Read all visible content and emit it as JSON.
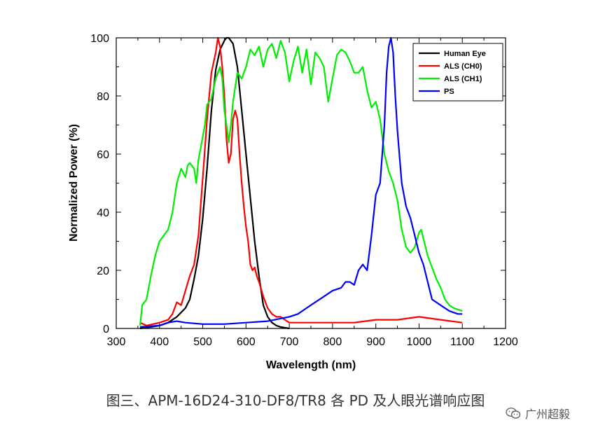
{
  "chart_data": {
    "type": "line",
    "title": "",
    "xlabel": "Wavelength (nm)",
    "ylabel": "Normalized Power (%)",
    "xlim": [
      300,
      1200
    ],
    "ylim": [
      0,
      100
    ],
    "xticks": [
      300,
      400,
      500,
      600,
      700,
      800,
      900,
      1000,
      1100,
      1200
    ],
    "yticks": [
      0,
      20,
      40,
      60,
      80,
      100
    ],
    "grid": false,
    "legend_position": "top-right",
    "series": [
      {
        "name": "Human Eye",
        "color": "#000000",
        "points": [
          [
            355,
            0
          ],
          [
            380,
            0.5
          ],
          [
            400,
            1
          ],
          [
            420,
            2
          ],
          [
            440,
            4
          ],
          [
            460,
            7
          ],
          [
            470,
            10
          ],
          [
            480,
            17
          ],
          [
            490,
            25
          ],
          [
            500,
            38
          ],
          [
            510,
            55
          ],
          [
            520,
            75
          ],
          [
            530,
            89
          ],
          [
            540,
            96
          ],
          [
            550,
            99
          ],
          [
            555,
            100
          ],
          [
            560,
            100
          ],
          [
            570,
            98
          ],
          [
            580,
            90
          ],
          [
            590,
            75
          ],
          [
            600,
            60
          ],
          [
            610,
            45
          ],
          [
            620,
            30
          ],
          [
            630,
            18
          ],
          [
            640,
            8
          ],
          [
            650,
            4
          ],
          [
            660,
            2
          ],
          [
            670,
            1
          ],
          [
            680,
            0.5
          ],
          [
            700,
            0
          ]
        ]
      },
      {
        "name": "ALS (CH0)",
        "color": "#ff0000",
        "points": [
          [
            355,
            2
          ],
          [
            370,
            1
          ],
          [
            400,
            2
          ],
          [
            420,
            3
          ],
          [
            430,
            5
          ],
          [
            440,
            9
          ],
          [
            450,
            8
          ],
          [
            460,
            13
          ],
          [
            470,
            18
          ],
          [
            480,
            22
          ],
          [
            490,
            32
          ],
          [
            500,
            52
          ],
          [
            510,
            72
          ],
          [
            520,
            88
          ],
          [
            530,
            95
          ],
          [
            535,
            100
          ],
          [
            540,
            97
          ],
          [
            545,
            90
          ],
          [
            550,
            80
          ],
          [
            555,
            65
          ],
          [
            560,
            57
          ],
          [
            565,
            60
          ],
          [
            570,
            72
          ],
          [
            575,
            75
          ],
          [
            580,
            72
          ],
          [
            585,
            60
          ],
          [
            590,
            50
          ],
          [
            595,
            42
          ],
          [
            600,
            35
          ],
          [
            605,
            30
          ],
          [
            610,
            22
          ],
          [
            615,
            20
          ],
          [
            620,
            21
          ],
          [
            625,
            18
          ],
          [
            630,
            16
          ],
          [
            640,
            11
          ],
          [
            650,
            7
          ],
          [
            660,
            5
          ],
          [
            670,
            4
          ],
          [
            680,
            4
          ],
          [
            690,
            3
          ],
          [
            700,
            2
          ],
          [
            750,
            2
          ],
          [
            800,
            2
          ],
          [
            850,
            2
          ],
          [
            900,
            3
          ],
          [
            950,
            3
          ],
          [
            1000,
            4
          ],
          [
            1050,
            3
          ],
          [
            1100,
            2
          ]
        ]
      },
      {
        "name": "ALS (CH1)",
        "color": "#00ee00",
        "points": [
          [
            355,
            1
          ],
          [
            360,
            8
          ],
          [
            370,
            10
          ],
          [
            380,
            18
          ],
          [
            390,
            25
          ],
          [
            400,
            30
          ],
          [
            410,
            32
          ],
          [
            420,
            34
          ],
          [
            430,
            40
          ],
          [
            440,
            50
          ],
          [
            450,
            55
          ],
          [
            460,
            52
          ],
          [
            465,
            56
          ],
          [
            470,
            57
          ],
          [
            480,
            55
          ],
          [
            485,
            50
          ],
          [
            490,
            58
          ],
          [
            500,
            66
          ],
          [
            505,
            70
          ],
          [
            510,
            77
          ],
          [
            520,
            79
          ],
          [
            530,
            86
          ],
          [
            540,
            90
          ],
          [
            545,
            86
          ],
          [
            550,
            75
          ],
          [
            555,
            70
          ],
          [
            560,
            64
          ],
          [
            565,
            70
          ],
          [
            570,
            78
          ],
          [
            580,
            88
          ],
          [
            590,
            86
          ],
          [
            600,
            90
          ],
          [
            610,
            96
          ],
          [
            620,
            94
          ],
          [
            630,
            97
          ],
          [
            640,
            90
          ],
          [
            650,
            96
          ],
          [
            660,
            98
          ],
          [
            670,
            93
          ],
          [
            680,
            99
          ],
          [
            685,
            97
          ],
          [
            690,
            95
          ],
          [
            700,
            85
          ],
          [
            710,
            92
          ],
          [
            720,
            97
          ],
          [
            730,
            88
          ],
          [
            740,
            96
          ],
          [
            750,
            84
          ],
          [
            760,
            95
          ],
          [
            770,
            93
          ],
          [
            780,
            90
          ],
          [
            790,
            78
          ],
          [
            800,
            86
          ],
          [
            810,
            94
          ],
          [
            820,
            96
          ],
          [
            830,
            95
          ],
          [
            840,
            92
          ],
          [
            850,
            88
          ],
          [
            860,
            88
          ],
          [
            870,
            90
          ],
          [
            880,
            82
          ],
          [
            890,
            76
          ],
          [
            900,
            78
          ],
          [
            910,
            72
          ],
          [
            920,
            60
          ],
          [
            930,
            54
          ],
          [
            940,
            50
          ],
          [
            950,
            44
          ],
          [
            960,
            34
          ],
          [
            970,
            28
          ],
          [
            980,
            26
          ],
          [
            990,
            28
          ],
          [
            1000,
            33
          ],
          [
            1005,
            34
          ],
          [
            1010,
            31
          ],
          [
            1020,
            25
          ],
          [
            1030,
            21
          ],
          [
            1040,
            17
          ],
          [
            1050,
            14
          ],
          [
            1060,
            10
          ],
          [
            1070,
            8
          ],
          [
            1080,
            7
          ],
          [
            1100,
            6
          ]
        ]
      },
      {
        "name": "PS",
        "color": "#0000ff",
        "points": [
          [
            355,
            0.5
          ],
          [
            400,
            1
          ],
          [
            420,
            2
          ],
          [
            440,
            2.5
          ],
          [
            460,
            2
          ],
          [
            500,
            1.5
          ],
          [
            550,
            1.5
          ],
          [
            600,
            2
          ],
          [
            650,
            2.5
          ],
          [
            700,
            4
          ],
          [
            720,
            5
          ],
          [
            740,
            7
          ],
          [
            760,
            9
          ],
          [
            780,
            11
          ],
          [
            800,
            13
          ],
          [
            820,
            14
          ],
          [
            830,
            16
          ],
          [
            840,
            16
          ],
          [
            850,
            15
          ],
          [
            860,
            20
          ],
          [
            870,
            22
          ],
          [
            880,
            20
          ],
          [
            890,
            32
          ],
          [
            900,
            46
          ],
          [
            910,
            50
          ],
          [
            920,
            70
          ],
          [
            925,
            88
          ],
          [
            930,
            97
          ],
          [
            935,
            100
          ],
          [
            940,
            95
          ],
          [
            945,
            80
          ],
          [
            950,
            68
          ],
          [
            960,
            50
          ],
          [
            970,
            42
          ],
          [
            980,
            38
          ],
          [
            990,
            32
          ],
          [
            1000,
            26
          ],
          [
            1010,
            22
          ],
          [
            1020,
            16
          ],
          [
            1030,
            10
          ],
          [
            1050,
            8
          ],
          [
            1070,
            6
          ],
          [
            1090,
            5
          ],
          [
            1100,
            5
          ]
        ]
      }
    ]
  },
  "caption": "图三、APM-16D24-310-DF8/TR8 各 PD 及人眼光谱响应图",
  "watermark": {
    "text": "广州超毅",
    "icon": "wechat-icon"
  }
}
